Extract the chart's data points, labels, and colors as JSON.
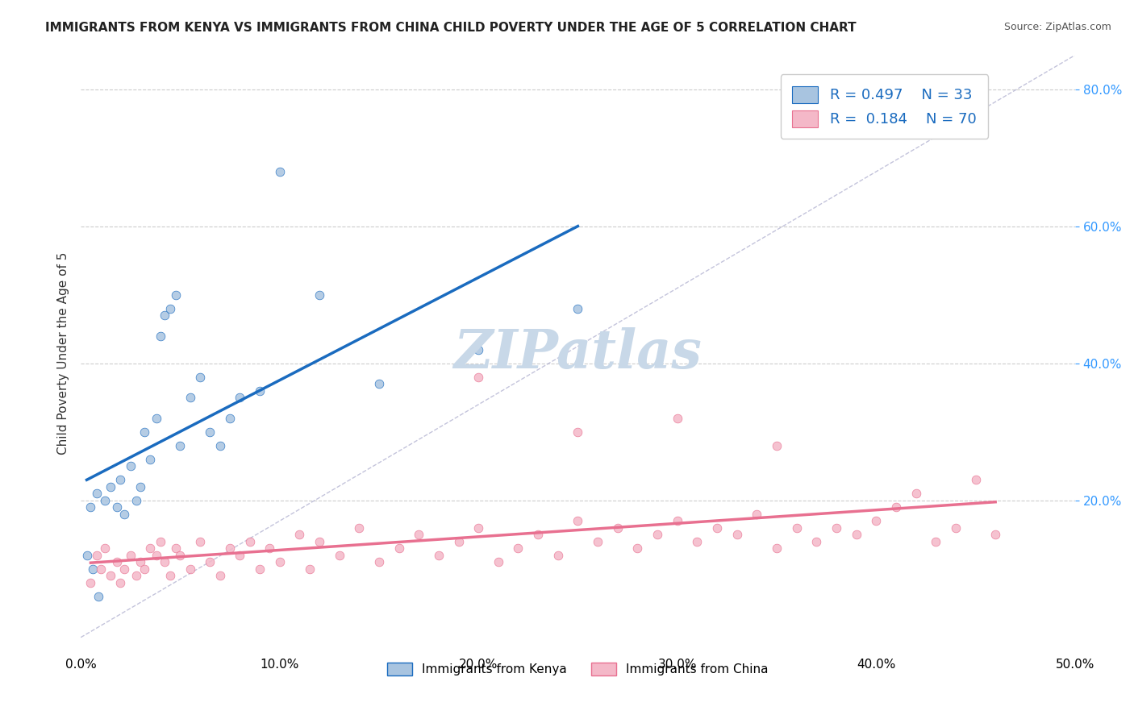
{
  "title": "IMMIGRANTS FROM KENYA VS IMMIGRANTS FROM CHINA CHILD POVERTY UNDER THE AGE OF 5 CORRELATION CHART",
  "source": "Source: ZipAtlas.com",
  "xlabel": "",
  "ylabel": "Child Poverty Under the Age of 5",
  "xlim": [
    0.0,
    0.5
  ],
  "ylim": [
    -0.02,
    0.85
  ],
  "xticks": [
    0.0,
    0.1,
    0.2,
    0.3,
    0.4,
    0.5
  ],
  "xticklabels": [
    "0.0%",
    "10.0%",
    "20.0%",
    "30.0%",
    "40.0%",
    "50.0%"
  ],
  "yticks_right": [
    0.2,
    0.4,
    0.6,
    0.8
  ],
  "yticklabels_right": [
    "20.0%",
    "40.0%",
    "60.0%",
    "80.0%"
  ],
  "legend_r_kenya": "0.497",
  "legend_n_kenya": "33",
  "legend_r_china": "0.184",
  "legend_n_china": "70",
  "kenya_color": "#a8c4e0",
  "china_color": "#f4b8c8",
  "kenya_line_color": "#1a6bbf",
  "china_line_color": "#e87090",
  "watermark": "ZIPatlas",
  "watermark_color": "#c8d8e8",
  "kenya_dots": [
    [
      0.005,
      0.19
    ],
    [
      0.008,
      0.21
    ],
    [
      0.012,
      0.2
    ],
    [
      0.015,
      0.22
    ],
    [
      0.018,
      0.19
    ],
    [
      0.02,
      0.23
    ],
    [
      0.022,
      0.18
    ],
    [
      0.025,
      0.25
    ],
    [
      0.028,
      0.2
    ],
    [
      0.03,
      0.22
    ],
    [
      0.032,
      0.3
    ],
    [
      0.035,
      0.26
    ],
    [
      0.038,
      0.32
    ],
    [
      0.04,
      0.44
    ],
    [
      0.042,
      0.47
    ],
    [
      0.045,
      0.48
    ],
    [
      0.048,
      0.5
    ],
    [
      0.05,
      0.28
    ],
    [
      0.055,
      0.35
    ],
    [
      0.06,
      0.38
    ],
    [
      0.065,
      0.3
    ],
    [
      0.07,
      0.28
    ],
    [
      0.075,
      0.32
    ],
    [
      0.08,
      0.35
    ],
    [
      0.09,
      0.36
    ],
    [
      0.1,
      0.68
    ],
    [
      0.12,
      0.5
    ],
    [
      0.15,
      0.37
    ],
    [
      0.2,
      0.42
    ],
    [
      0.25,
      0.48
    ],
    [
      0.003,
      0.12
    ],
    [
      0.006,
      0.1
    ],
    [
      0.009,
      0.06
    ]
  ],
  "china_dots": [
    [
      0.005,
      0.08
    ],
    [
      0.008,
      0.12
    ],
    [
      0.01,
      0.1
    ],
    [
      0.012,
      0.13
    ],
    [
      0.015,
      0.09
    ],
    [
      0.018,
      0.11
    ],
    [
      0.02,
      0.08
    ],
    [
      0.022,
      0.1
    ],
    [
      0.025,
      0.12
    ],
    [
      0.028,
      0.09
    ],
    [
      0.03,
      0.11
    ],
    [
      0.032,
      0.1
    ],
    [
      0.035,
      0.13
    ],
    [
      0.038,
      0.12
    ],
    [
      0.04,
      0.14
    ],
    [
      0.042,
      0.11
    ],
    [
      0.045,
      0.09
    ],
    [
      0.048,
      0.13
    ],
    [
      0.05,
      0.12
    ],
    [
      0.055,
      0.1
    ],
    [
      0.06,
      0.14
    ],
    [
      0.065,
      0.11
    ],
    [
      0.07,
      0.09
    ],
    [
      0.075,
      0.13
    ],
    [
      0.08,
      0.12
    ],
    [
      0.085,
      0.14
    ],
    [
      0.09,
      0.1
    ],
    [
      0.095,
      0.13
    ],
    [
      0.1,
      0.11
    ],
    [
      0.11,
      0.15
    ],
    [
      0.115,
      0.1
    ],
    [
      0.12,
      0.14
    ],
    [
      0.13,
      0.12
    ],
    [
      0.14,
      0.16
    ],
    [
      0.15,
      0.11
    ],
    [
      0.16,
      0.13
    ],
    [
      0.17,
      0.15
    ],
    [
      0.18,
      0.12
    ],
    [
      0.19,
      0.14
    ],
    [
      0.2,
      0.16
    ],
    [
      0.21,
      0.11
    ],
    [
      0.22,
      0.13
    ],
    [
      0.23,
      0.15
    ],
    [
      0.24,
      0.12
    ],
    [
      0.25,
      0.17
    ],
    [
      0.26,
      0.14
    ],
    [
      0.27,
      0.16
    ],
    [
      0.28,
      0.13
    ],
    [
      0.29,
      0.15
    ],
    [
      0.3,
      0.17
    ],
    [
      0.31,
      0.14
    ],
    [
      0.32,
      0.16
    ],
    [
      0.33,
      0.15
    ],
    [
      0.34,
      0.18
    ],
    [
      0.35,
      0.13
    ],
    [
      0.36,
      0.16
    ],
    [
      0.37,
      0.14
    ],
    [
      0.38,
      0.16
    ],
    [
      0.39,
      0.15
    ],
    [
      0.4,
      0.17
    ],
    [
      0.41,
      0.19
    ],
    [
      0.42,
      0.21
    ],
    [
      0.43,
      0.14
    ],
    [
      0.44,
      0.16
    ],
    [
      0.45,
      0.23
    ],
    [
      0.46,
      0.15
    ],
    [
      0.2,
      0.38
    ],
    [
      0.25,
      0.3
    ],
    [
      0.3,
      0.32
    ],
    [
      0.35,
      0.28
    ]
  ],
  "background_color": "#ffffff",
  "grid_color": "#cccccc"
}
